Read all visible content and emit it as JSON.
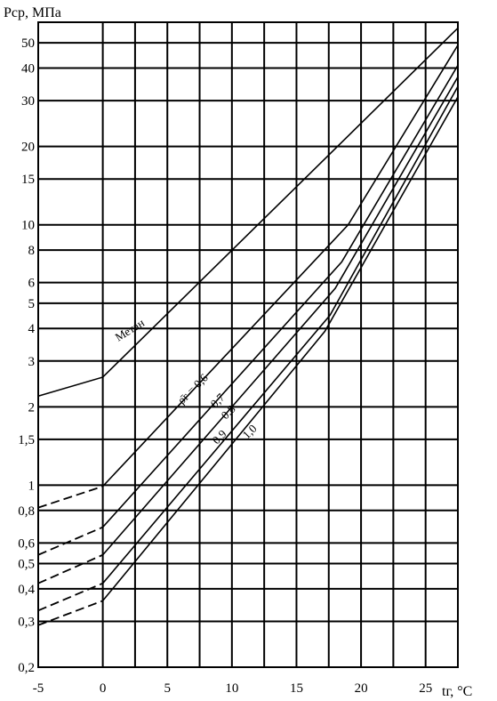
{
  "chart_data": {
    "type": "line",
    "title": "",
    "ylabel": "Pср, МПа",
    "xlabel": "tг, °C",
    "y_scale": "log",
    "grid": true,
    "xlim": [
      -5,
      27.5
    ],
    "ylim": [
      0.2,
      60
    ],
    "x_ticks": [
      {
        "value": -5,
        "label": "-5"
      },
      {
        "value": 0,
        "label": "0"
      },
      {
        "value": 5,
        "label": "5"
      },
      {
        "value": 10,
        "label": "10"
      },
      {
        "value": 15,
        "label": "15"
      },
      {
        "value": 20,
        "label": "20"
      },
      {
        "value": 25,
        "label": "25"
      }
    ],
    "y_ticks": [
      {
        "value": 0.2,
        "label": "0,2"
      },
      {
        "value": 0.3,
        "label": "0,3"
      },
      {
        "value": 0.4,
        "label": "0,4"
      },
      {
        "value": 0.5,
        "label": "0,5"
      },
      {
        "value": 0.6,
        "label": "0,6"
      },
      {
        "value": 0.8,
        "label": "0,8"
      },
      {
        "value": 1,
        "label": "1"
      },
      {
        "value": 1.5,
        "label": "1,5"
      },
      {
        "value": 2,
        "label": "2"
      },
      {
        "value": 3,
        "label": "3"
      },
      {
        "value": 4,
        "label": "4"
      },
      {
        "value": 5,
        "label": "5"
      },
      {
        "value": 6,
        "label": "6"
      },
      {
        "value": 8,
        "label": "8"
      },
      {
        "value": 10,
        "label": "10"
      },
      {
        "value": 15,
        "label": "15"
      },
      {
        "value": 20,
        "label": "20"
      },
      {
        "value": 30,
        "label": "30"
      },
      {
        "value": 40,
        "label": "40"
      },
      {
        "value": 50,
        "label": "50"
      }
    ],
    "series": [
      {
        "name": "Метан",
        "dashed_x": [],
        "dashed_y": [],
        "x": [
          -5,
          0,
          27.5
        ],
        "y": [
          2.2,
          2.6,
          57
        ]
      },
      {
        "name": "0,6",
        "dashed_x": [
          -5,
          0
        ],
        "dashed_y": [
          0.82,
          0.99
        ],
        "x": [
          0,
          19,
          27.5
        ],
        "y": [
          0.99,
          10,
          49
        ]
      },
      {
        "name": "0,7",
        "dashed_x": [
          -5,
          0
        ],
        "dashed_y": [
          0.54,
          0.69
        ],
        "x": [
          0,
          18.5,
          27.5
        ],
        "y": [
          0.69,
          7.2,
          41
        ]
      },
      {
        "name": "0,8",
        "dashed_x": [
          -5,
          0
        ],
        "dashed_y": [
          0.42,
          0.54
        ],
        "x": [
          0,
          18,
          27.5
        ],
        "y": [
          0.54,
          5.7,
          37
        ]
      },
      {
        "name": "0,9",
        "dashed_x": [
          -5,
          0
        ],
        "dashed_y": [
          0.33,
          0.42
        ],
        "x": [
          0,
          17.6,
          27.5
        ],
        "y": [
          0.42,
          4.5,
          34
        ]
      },
      {
        "name": "1,0",
        "dashed_x": [
          -5,
          0
        ],
        "dashed_y": [
          0.29,
          0.36
        ],
        "x": [
          0,
          17.2,
          27.5
        ],
        "y": [
          0.36,
          3.9,
          31
        ]
      }
    ],
    "annotations": {
      "methane": "Метан",
      "density_symbol": "ρ̄г",
      "density_eq": "ρ̄г = 0,6",
      "v07": "0,7",
      "v08": "0,8",
      "v09": "0,9",
      "v10": "1,0"
    }
  }
}
